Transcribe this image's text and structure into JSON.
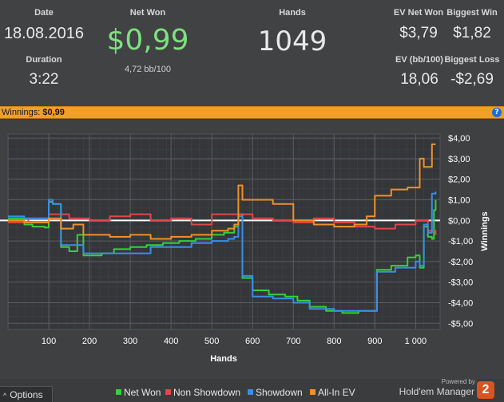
{
  "stats": {
    "date_label": "Date",
    "date_value": "18.08.2016",
    "duration_label": "Duration",
    "duration_value": "3:22",
    "net_won_label": "Net Won",
    "net_won_value": "$0,99",
    "net_won_sub": "4,72 bb/100",
    "hands_label": "Hands",
    "hands_value": "1049",
    "ev_net_won_label": "EV Net Won",
    "ev_net_won_value": "$3,79",
    "biggest_win_label": "Biggest Win",
    "biggest_win_value": "$1,82",
    "ev_bb_label": "EV (bb/100)",
    "ev_bb_value": "18,06",
    "biggest_loss_label": "Biggest Loss",
    "biggest_loss_value": "-$2,69"
  },
  "bar": {
    "label": "Winnings:",
    "value": "$0,99",
    "help": "?"
  },
  "colors": {
    "net_won_text": "#7ee07e",
    "net_won_line": "#35d235",
    "non_showdown_line": "#e04848",
    "showdown_line": "#3a8ee6",
    "allin_ev_line": "#f0902a",
    "zero_line": "#ffffff"
  },
  "chart_data": {
    "type": "line",
    "xlabel": "Hands",
    "ylabel": "Winnings",
    "xlim": [
      0,
      1060
    ],
    "ylim": [
      -5.3,
      4.2
    ],
    "x_ticks": [
      100,
      200,
      300,
      400,
      500,
      600,
      700,
      800,
      900,
      1000
    ],
    "x_tick_labels": [
      "100",
      "200",
      "300",
      "400",
      "500",
      "600",
      "700",
      "800",
      "900",
      "1 000"
    ],
    "y_ticks": [
      4,
      3,
      2,
      1,
      0,
      -1,
      -2,
      -3,
      -4,
      -5
    ],
    "y_tick_labels": [
      "$4,00",
      "$3,00",
      "$2,00",
      "$1,00",
      "$0,00",
      "-$1,00",
      "-$2,00",
      "-$3,00",
      "-$4,00",
      "-$5,00"
    ],
    "grid": true,
    "legend_position": "bottom",
    "series": [
      {
        "name": "Net Won",
        "key": "net_won",
        "x": [
          0,
          40,
          60,
          90,
          100,
          110,
          130,
          150,
          170,
          185,
          200,
          230,
          260,
          300,
          340,
          380,
          420,
          460,
          500,
          530,
          555,
          565,
          575,
          600,
          640,
          680,
          710,
          740,
          780,
          820,
          860,
          895,
          905,
          940,
          980,
          1000,
          1010,
          1020,
          1030,
          1040,
          1045,
          1049
        ],
        "y": [
          0.1,
          -0.2,
          -0.3,
          -0.35,
          0.9,
          0.8,
          -1.3,
          -1.5,
          -0.7,
          -1.7,
          -1.7,
          -1.6,
          -1.4,
          -1.3,
          -1.2,
          -1.1,
          -1.0,
          -0.9,
          -0.7,
          -0.6,
          -0.3,
          0.3,
          -2.8,
          -3.4,
          -3.6,
          -3.7,
          -3.9,
          -4.2,
          -4.4,
          -4.5,
          -4.4,
          -4.4,
          -2.4,
          -2.2,
          -1.8,
          -1.7,
          -2.3,
          -0.3,
          -0.8,
          -0.9,
          0.5,
          0.99
        ]
      },
      {
        "name": "Non Showdown",
        "key": "non_showdown",
        "x": [
          0,
          50,
          100,
          150,
          200,
          250,
          300,
          350,
          400,
          450,
          500,
          550,
          600,
          650,
          700,
          750,
          800,
          850,
          900,
          950,
          1000,
          1030,
          1049
        ],
        "y": [
          -0.1,
          0.1,
          0.3,
          0.1,
          0.0,
          0.2,
          0.3,
          0.0,
          0.1,
          -0.2,
          0.3,
          0.3,
          0.1,
          0.0,
          -0.1,
          0.1,
          -0.1,
          -0.3,
          -0.4,
          -0.2,
          0.0,
          -0.5,
          -0.7
        ]
      },
      {
        "name": "Showdown",
        "key": "showdown",
        "x": [
          0,
          40,
          100,
          110,
          130,
          160,
          185,
          250,
          300,
          350,
          400,
          450,
          500,
          540,
          555,
          565,
          575,
          600,
          650,
          700,
          740,
          800,
          860,
          895,
          905,
          950,
          1000,
          1010,
          1020,
          1030,
          1040,
          1049
        ],
        "y": [
          0.2,
          0.1,
          1.0,
          0.8,
          -1.2,
          -1.2,
          -1.6,
          -1.6,
          -1.6,
          -1.3,
          -1.3,
          -1.1,
          -1.0,
          -0.9,
          -0.8,
          0.2,
          -2.7,
          -3.7,
          -3.8,
          -4.0,
          -4.3,
          -4.4,
          -4.4,
          -4.4,
          -2.5,
          -2.3,
          -2.0,
          -2.2,
          -0.2,
          -0.6,
          1.3,
          1.4
        ]
      },
      {
        "name": "All-In EV",
        "key": "allin_ev",
        "x": [
          0,
          40,
          100,
          130,
          160,
          185,
          250,
          300,
          350,
          400,
          450,
          500,
          540,
          555,
          565,
          575,
          600,
          650,
          700,
          750,
          800,
          850,
          880,
          900,
          940,
          980,
          1000,
          1010,
          1020,
          1030,
          1040,
          1049
        ],
        "y": [
          0.0,
          -0.1,
          0.1,
          -0.4,
          -0.2,
          -0.7,
          -0.8,
          -0.7,
          -0.9,
          -0.8,
          -0.7,
          -0.5,
          -0.4,
          -0.2,
          1.7,
          1.0,
          1.0,
          0.8,
          0.0,
          -0.2,
          -0.3,
          -0.2,
          0.2,
          1.2,
          1.5,
          1.6,
          1.6,
          3.0,
          2.6,
          2.6,
          3.7,
          3.7
        ]
      }
    ]
  },
  "footer": {
    "options_label": "Options",
    "options_caret": "^",
    "legend_net_won": "Net Won",
    "legend_non_showdown": "Non Showdown",
    "legend_showdown": "Showdown",
    "legend_allin_ev": "All-In EV",
    "powered_by": "Powered by",
    "brand": "Hold'em Manager",
    "logo_digit": "2"
  }
}
